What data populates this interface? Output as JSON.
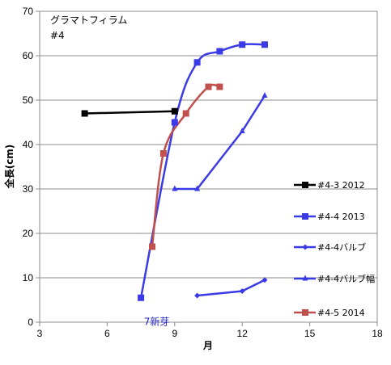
{
  "chart_data": {
    "type": "line",
    "annotation_title": "グラマトフィラム",
    "annotation_subtitle": "#4",
    "xlabel": "月",
    "ylabel": "全長(cm)",
    "xlim": [
      3,
      18
    ],
    "ylim": [
      0,
      70
    ],
    "x_ticks": [
      3,
      6,
      9,
      12,
      15,
      18
    ],
    "y_ticks": [
      0,
      10,
      20,
      30,
      40,
      50,
      60,
      70
    ],
    "grid": "horizontal",
    "legend_position": "right",
    "series": [
      {
        "name": "#4-3 2012",
        "color": "#000000",
        "marker": "square",
        "smooth": false,
        "points": [
          [
            5,
            47
          ],
          [
            9,
            47.5
          ]
        ]
      },
      {
        "name": "#4-4 2013",
        "color": "#3a3ae6",
        "marker": "square",
        "smooth": true,
        "points": [
          [
            7.5,
            5.5
          ],
          [
            9,
            45
          ],
          [
            10,
            58.5
          ],
          [
            11,
            61
          ],
          [
            12,
            62.5
          ],
          [
            13,
            62.5
          ]
        ]
      },
      {
        "name": "#4-4バルブ",
        "color": "#3a3ae6",
        "marker": "diamond",
        "smooth": false,
        "points": [
          [
            10,
            6
          ],
          [
            12,
            7
          ],
          [
            13,
            9.5
          ]
        ]
      },
      {
        "name": "#4-4バルブ幅",
        "color": "#3a3ae6",
        "marker": "triangle",
        "smooth": false,
        "points": [
          [
            9,
            30
          ],
          [
            10,
            30
          ],
          [
            12,
            43
          ],
          [
            13,
            51
          ]
        ]
      },
      {
        "name": "#4-5 2014",
        "color": "#c0504d",
        "marker": "square",
        "smooth": true,
        "points": [
          [
            8,
            17
          ],
          [
            8.5,
            38
          ],
          [
            9.5,
            47
          ],
          [
            10.5,
            53
          ],
          [
            11,
            53
          ]
        ]
      }
    ],
    "annotations": [
      {
        "text": "7新芽",
        "x": 8.2,
        "y": 1.2
      }
    ]
  }
}
